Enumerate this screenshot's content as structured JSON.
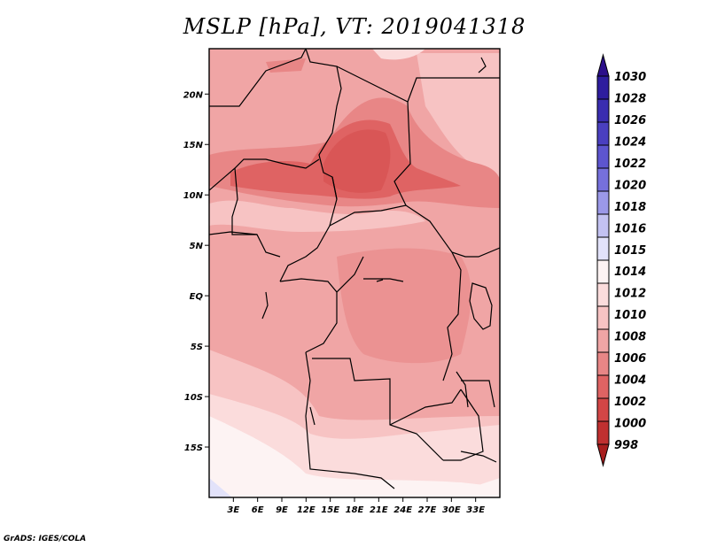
{
  "title": "MSLP [hPa], VT: 2019041318",
  "credit": "GrADS: IGES/COLA",
  "map": {
    "lon_range": [
      0,
      36
    ],
    "lat_range": [
      -20,
      24.5
    ],
    "lat_ticks": [
      {
        "value": 20,
        "label": "20N"
      },
      {
        "value": 15,
        "label": "15N"
      },
      {
        "value": 10,
        "label": "10N"
      },
      {
        "value": 5,
        "label": "5N"
      },
      {
        "value": 0,
        "label": "EQ"
      },
      {
        "value": -5,
        "label": "5S"
      },
      {
        "value": -10,
        "label": "10S"
      },
      {
        "value": -15,
        "label": "15S"
      }
    ],
    "lon_ticks": [
      {
        "value": 3,
        "label": "3E"
      },
      {
        "value": 6,
        "label": "6E"
      },
      {
        "value": 9,
        "label": "9E"
      },
      {
        "value": 12,
        "label": "12E"
      },
      {
        "value": 15,
        "label": "15E"
      },
      {
        "value": 18,
        "label": "18E"
      },
      {
        "value": 21,
        "label": "21E"
      },
      {
        "value": 24,
        "label": "24E"
      },
      {
        "value": 27,
        "label": "27E"
      },
      {
        "value": 30,
        "label": "30E"
      },
      {
        "value": 33,
        "label": "33E"
      }
    ]
  },
  "colorbar": {
    "levels": [
      {
        "label": "1030",
        "color": "#2c0f8a"
      },
      {
        "label": "1028",
        "color": "#2e1d9e"
      },
      {
        "label": "1026",
        "color": "#3a2db0"
      },
      {
        "label": "1024",
        "color": "#4a3fc0"
      },
      {
        "label": "1022",
        "color": "#5d55cf"
      },
      {
        "label": "1020",
        "color": "#7670dc"
      },
      {
        "label": "1018",
        "color": "#9b98e8"
      },
      {
        "label": "1016",
        "color": "#c3c2f2"
      },
      {
        "label": "1015",
        "color": "#e2e2fa"
      },
      {
        "label": "1014",
        "color": "#fdf3f3"
      },
      {
        "label": "1012",
        "color": "#fbdcdc"
      },
      {
        "label": "1010",
        "color": "#f7c3c3"
      },
      {
        "label": "1008",
        "color": "#f0a5a5"
      },
      {
        "label": "1006",
        "color": "#e88686"
      },
      {
        "label": "1004",
        "color": "#df6363"
      },
      {
        "label": "1002",
        "color": "#d34646"
      },
      {
        "label": "1000",
        "color": "#c03030"
      },
      {
        "label": "998",
        "color": "#a81e1e"
      }
    ]
  }
}
